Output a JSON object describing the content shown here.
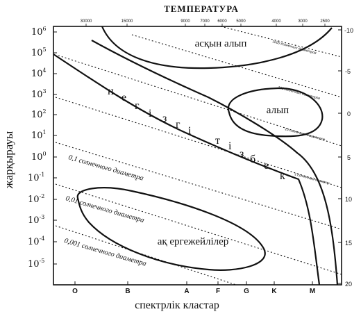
{
  "title": "ТЕМПЕРАТУРА",
  "temperature_ticks": [
    "30000",
    "15000",
    "9000",
    "7000",
    "6000",
    "5000",
    "4000",
    "3000",
    "2500"
  ],
  "luminosity_ticks": [
    {
      "base": "10",
      "exp": "6"
    },
    {
      "base": "10",
      "exp": "5"
    },
    {
      "base": "10",
      "exp": "4"
    },
    {
      "base": "10",
      "exp": "3"
    },
    {
      "base": "10",
      "exp": "2"
    },
    {
      "base": "10",
      "exp": "1"
    },
    {
      "base": "10",
      "exp": "0"
    },
    {
      "base": "10",
      "exp": "-1"
    },
    {
      "base": "10",
      "exp": "-2"
    },
    {
      "base": "10",
      "exp": "-3"
    },
    {
      "base": "10",
      "exp": "-4"
    },
    {
      "base": "10",
      "exp": "-5"
    }
  ],
  "magnitude_ticks": [
    "-10",
    "-5",
    "0",
    "5",
    "10",
    "15",
    "20"
  ],
  "spectral_classes": [
    "O",
    "B",
    "A",
    "F",
    "G",
    "K",
    "M"
  ],
  "y_axis_label": "жарқырауы",
  "x_axis_label": "спектрлік кластар",
  "regions": {
    "supergiants": "асқын алып",
    "giants": "алып",
    "white_dwarfs": "ақ ергежейлілер",
    "main_sequence_letters": [
      "н",
      "е",
      "г",
      "і",
      "з",
      "г",
      "і",
      "т",
      "і",
      "з",
      "б",
      "е",
      "к"
    ]
  },
  "diameter_lines": {
    "d01": "0,1 солнечного диаметра",
    "d001": "0,01 солнечного диаметра",
    "d0001": "0,001 солнечного диаметра",
    "d1000": "1000 солнечных диаметров",
    "d100": "100 солнечных диаметров",
    "d10": "10 солнечных диаметров",
    "d1": "1 солнечный диаметр"
  },
  "colors": {
    "ink": "#111111",
    "background": "#ffffff"
  }
}
